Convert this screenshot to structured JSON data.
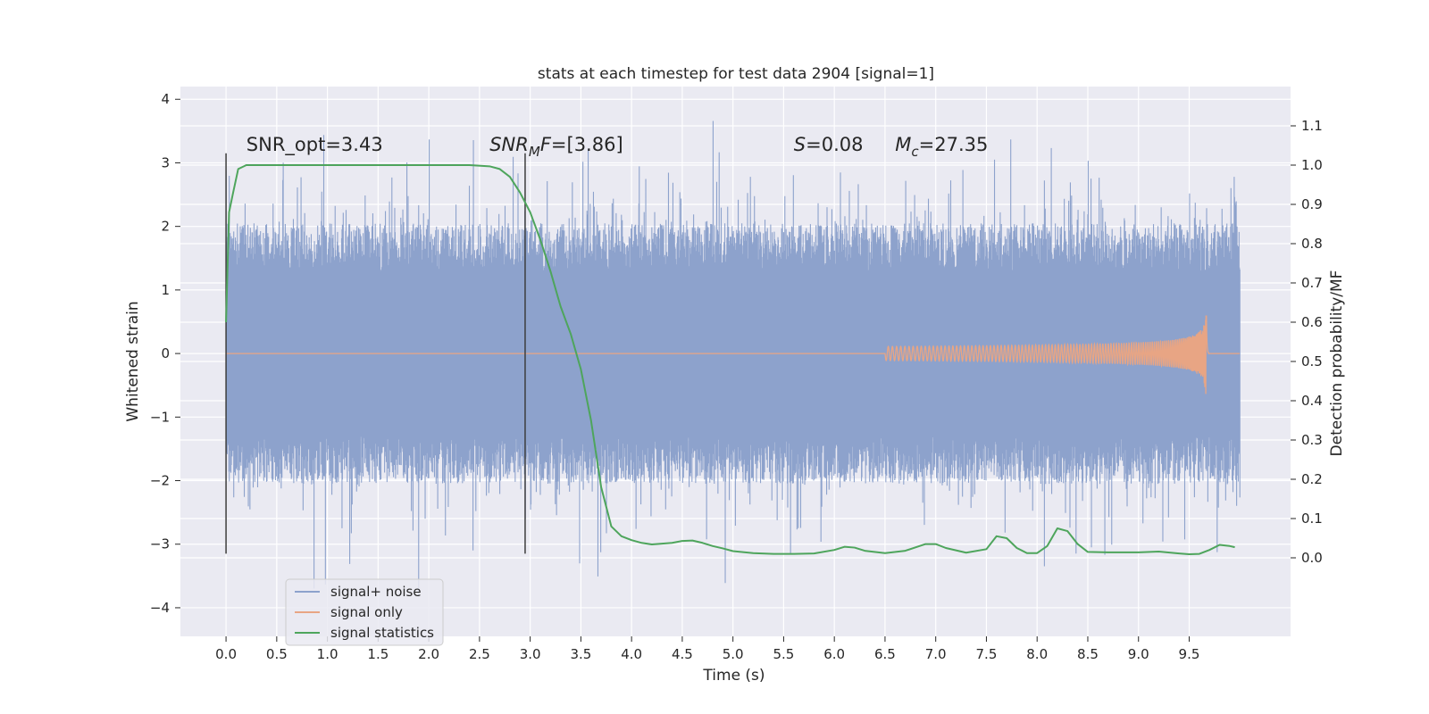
{
  "chart_data": {
    "type": "line",
    "title": "stats at each timestep for test data 2904 [signal=1]",
    "xlabel": "Time (s)",
    "ylabel": "Whitened strain",
    "y2label": "Detection probability/MF",
    "xlim": [
      -0.45,
      10.5
    ],
    "ylim": [
      -4.45,
      4.2
    ],
    "y2lim": [
      -0.2,
      1.2
    ],
    "xticks": [
      0.0,
      0.5,
      1.0,
      1.5,
      2.0,
      2.5,
      3.0,
      3.5,
      4.0,
      4.5,
      5.0,
      5.5,
      6.0,
      6.5,
      7.0,
      7.5,
      8.0,
      8.5,
      9.0,
      9.5
    ],
    "yticks": [
      -4,
      -3,
      -2,
      -1,
      0,
      1,
      2,
      3,
      4
    ],
    "y2ticks": [
      0.0,
      0.1,
      0.2,
      0.3,
      0.4,
      0.5,
      0.6,
      0.7,
      0.8,
      0.9,
      1.0,
      1.1
    ],
    "grid": true,
    "legend_position": "lower-left",
    "annotations": [
      {
        "text": "SNR_opt=3.43",
        "x": 0.2
      },
      {
        "text": "SNR",
        "sub": "M",
        "suffix": "F=[3.86]",
        "x": 2.6
      },
      {
        "text": "S",
        "suffix": "=0.08",
        "x": 5.6
      },
      {
        "text": "M",
        "sub": "c",
        "suffix": "=27.35",
        "x": 6.6
      }
    ],
    "vlines": [
      0.0,
      2.95
    ],
    "noise": {
      "t_start": 0.0,
      "t_end": 10.0,
      "core_amplitude": 1.3,
      "peak_min": 4.05,
      "peak_max": 4.0
    },
    "signal_chirp": {
      "t_start": 6.5,
      "t_merge": 9.67,
      "peak_amplitude": 0.82
    },
    "series": [
      {
        "name": "signal+ noise",
        "color": "#8da2cc"
      },
      {
        "name": "signal only",
        "color": "#e8a584"
      },
      {
        "name": "signal statistics",
        "color": "#4ea55c",
        "x": [
          0.0,
          0.03,
          0.07,
          0.12,
          0.2,
          0.3,
          0.5,
          1.0,
          1.5,
          2.0,
          2.4,
          2.6,
          2.7,
          2.8,
          2.9,
          3.0,
          3.1,
          3.2,
          3.3,
          3.4,
          3.5,
          3.6,
          3.7,
          3.8,
          3.9,
          4.0,
          4.1,
          4.2,
          4.3,
          4.4,
          4.5,
          4.6,
          4.7,
          4.8,
          4.9,
          5.0,
          5.2,
          5.4,
          5.6,
          5.8,
          6.0,
          6.1,
          6.2,
          6.3,
          6.5,
          6.7,
          6.9,
          7.0,
          7.1,
          7.3,
          7.5,
          7.6,
          7.7,
          7.8,
          7.9,
          8.0,
          8.1,
          8.2,
          8.3,
          8.4,
          8.5,
          8.7,
          9.0,
          9.2,
          9.4,
          9.5,
          9.6,
          9.7,
          9.8,
          9.9,
          9.95
        ],
        "values": [
          0.6,
          0.88,
          0.93,
          0.99,
          1.0,
          1.0,
          1.0,
          1.0,
          1.0,
          1.0,
          1.0,
          0.997,
          0.99,
          0.97,
          0.93,
          0.88,
          0.81,
          0.73,
          0.64,
          0.57,
          0.48,
          0.35,
          0.18,
          0.08,
          0.055,
          0.045,
          0.038,
          0.034,
          0.036,
          0.038,
          0.043,
          0.044,
          0.038,
          0.03,
          0.024,
          0.017,
          0.012,
          0.01,
          0.01,
          0.011,
          0.02,
          0.028,
          0.026,
          0.018,
          0.012,
          0.018,
          0.035,
          0.035,
          0.025,
          0.013,
          0.022,
          0.055,
          0.05,
          0.025,
          0.012,
          0.012,
          0.03,
          0.075,
          0.068,
          0.035,
          0.015,
          0.014,
          0.014,
          0.016,
          0.011,
          0.009,
          0.01,
          0.02,
          0.033,
          0.03,
          0.027
        ]
      }
    ]
  }
}
